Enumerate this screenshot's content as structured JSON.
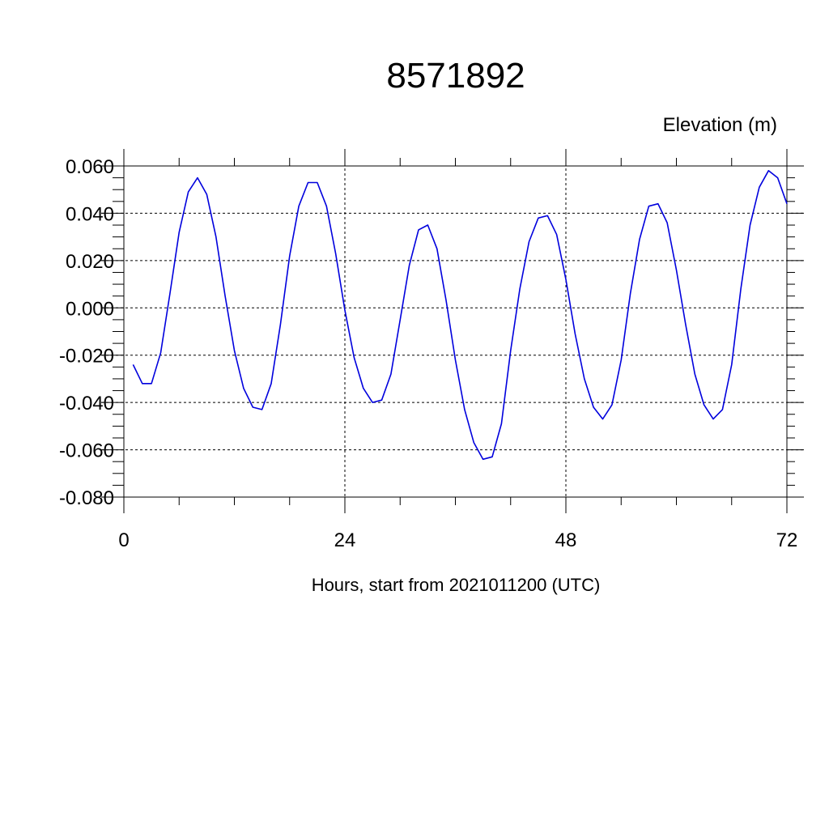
{
  "chart_data": {
    "type": "line",
    "title": "8571892",
    "ylabel": "Elevation (m)",
    "xlabel": "Hours, start from 2021011200 (UTC)",
    "xlim": [
      0,
      72
    ],
    "ylim": [
      -0.08,
      0.06
    ],
    "x_ticks": [
      0,
      24,
      48,
      72
    ],
    "x_tick_labels": [
      "0",
      "24",
      "48",
      "72"
    ],
    "y_ticks": [
      -0.08,
      -0.06,
      -0.04,
      -0.02,
      0.0,
      0.02,
      0.04,
      0.06
    ],
    "y_tick_labels": [
      "-0.080",
      "-0.060",
      "-0.040",
      "-0.020",
      "0.000",
      "0.020",
      "0.040",
      "0.060"
    ],
    "grid": true,
    "line_color": "#0000dd",
    "series": [
      {
        "x": [
          1,
          2,
          3,
          4,
          5,
          6,
          7,
          8,
          9,
          10,
          11,
          12,
          13,
          14,
          15,
          16,
          17,
          18,
          19,
          20,
          21,
          22,
          23,
          24,
          25,
          26,
          27,
          28,
          29,
          30,
          31,
          32,
          33,
          34,
          35,
          36,
          37,
          38,
          39,
          40,
          41,
          42,
          43,
          44,
          45,
          46,
          47,
          48,
          49,
          50,
          51,
          52,
          53,
          54,
          55,
          56,
          57,
          58,
          59,
          60,
          61,
          62,
          63,
          64,
          65,
          66,
          67,
          68,
          69,
          70,
          71,
          72
        ],
        "values": [
          -0.024,
          -0.032,
          -0.032,
          -0.019,
          0.006,
          0.032,
          0.049,
          0.055,
          0.048,
          0.03,
          0.005,
          -0.018,
          -0.034,
          -0.042,
          -0.043,
          -0.032,
          -0.007,
          0.022,
          0.043,
          0.053,
          0.053,
          0.043,
          0.023,
          -0.001,
          -0.021,
          -0.034,
          -0.04,
          -0.039,
          -0.028,
          -0.005,
          0.018,
          0.033,
          0.035,
          0.025,
          0.003,
          -0.022,
          -0.043,
          -0.057,
          -0.064,
          -0.063,
          -0.049,
          -0.018,
          0.008,
          0.028,
          0.038,
          0.039,
          0.031,
          0.012,
          -0.011,
          -0.03,
          -0.042,
          -0.047,
          -0.041,
          -0.022,
          0.006,
          0.029,
          0.043,
          0.044,
          0.036,
          0.016,
          -0.007,
          -0.028,
          -0.041,
          -0.047,
          -0.043,
          -0.024,
          0.008,
          0.035,
          0.051,
          0.058,
          0.055,
          0.044
        ]
      }
    ]
  }
}
